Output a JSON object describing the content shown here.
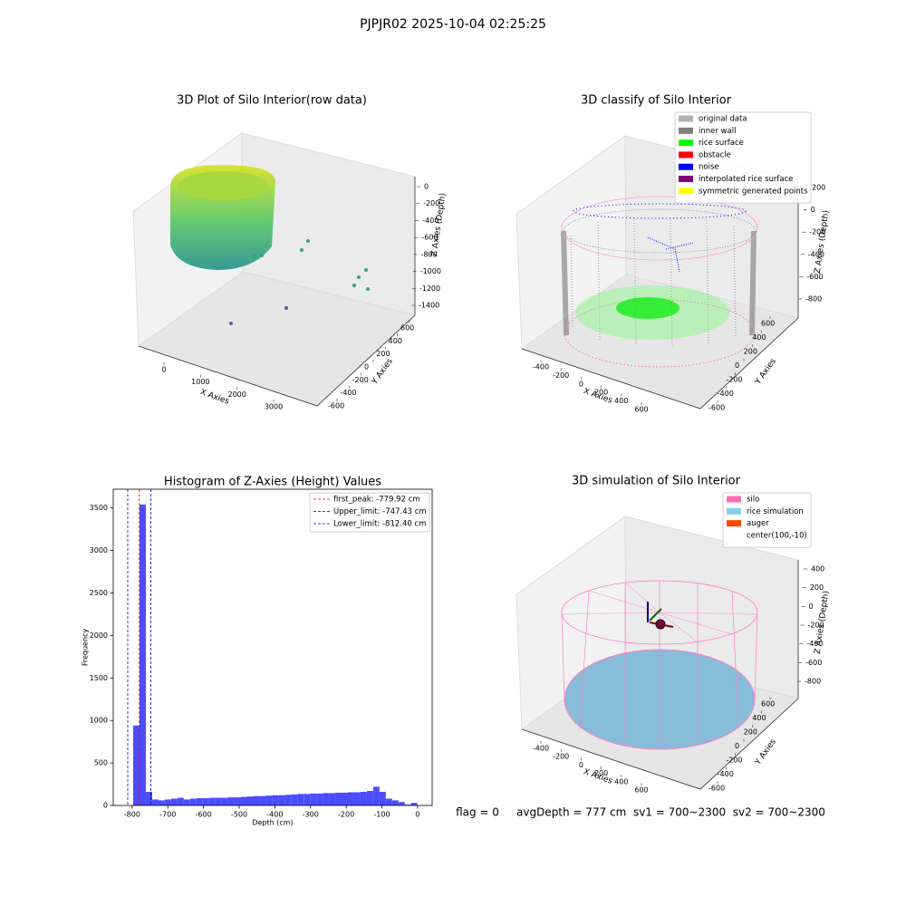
{
  "title": "PJPJR02 2025-10-04 02:25:25",
  "footer": "flag = 0     avgDepth = 777 cm  sv1 = 700~2300  sv2 = 700~2300",
  "chart_data": [
    {
      "type": "3d",
      "title": "3D Plot of Silo Interior(row data)",
      "xlabel": "X Axies",
      "ylabel": "Y Axies",
      "zlabel": "Z Axies (Depth)",
      "xticks": [
        0,
        1000,
        2000,
        3000
      ],
      "yticks": [
        -600,
        -400,
        -200,
        0,
        200,
        400,
        600
      ],
      "zticks": [
        -1400,
        -1200,
        -1000,
        -800,
        -600,
        -400,
        -200,
        0
      ]
    },
    {
      "type": "3d",
      "title": "3D classify of Silo Interior",
      "xlabel": "X Axies",
      "ylabel": "Y Axies",
      "zlabel": "Z Axies (Depth)",
      "xticks": [
        -400,
        -200,
        0,
        200,
        400,
        600
      ],
      "yticks": [
        -600,
        -400,
        -200,
        0,
        200,
        400,
        600
      ],
      "zticks": [
        -800,
        -600,
        -400,
        -200,
        0,
        200
      ],
      "legend": [
        {
          "name": "original data",
          "color": "#b3b3b3"
        },
        {
          "name": "inner wall",
          "color": "#808080"
        },
        {
          "name": "rice surface",
          "color": "#00ff00"
        },
        {
          "name": "obstacle",
          "color": "#ff0000"
        },
        {
          "name": "noise",
          "color": "#0000ff"
        },
        {
          "name": "interpolated rice surface",
          "color": "#800080"
        },
        {
          "name": "symmetric generated points",
          "color": "#ffff00"
        }
      ]
    },
    {
      "type": "histogram",
      "title": "Histogram of Z-Axies (Height) Values",
      "xlabel": "Depth (cm)",
      "ylabel": "Frequency",
      "color": "#4c4cff",
      "bins": [
        -797.0,
        -779.3,
        -761.6,
        -743.9,
        -726.2,
        -708.5,
        -690.8,
        -673.1,
        -655.4,
        -637.7,
        -620.0,
        -602.3,
        -584.6,
        -566.9,
        -549.2,
        -531.5,
        -513.8,
        -496.1,
        -478.4,
        -460.7,
        -443.0,
        -425.3,
        -407.6,
        -389.9,
        -372.2,
        -354.5,
        -336.8,
        -319.1,
        -301.4,
        -283.7,
        -266.0,
        -248.3,
        -230.6,
        -212.9,
        -195.2,
        -177.5,
        -159.8,
        -142.1,
        -124.4,
        -106.7,
        -89.0,
        -71.3,
        -53.6,
        -35.9,
        -18.2,
        -0.5
      ],
      "values": [
        940,
        3540,
        160,
        70,
        60,
        70,
        80,
        90,
        70,
        80,
        85,
        85,
        90,
        90,
        90,
        95,
        95,
        100,
        105,
        110,
        110,
        115,
        120,
        120,
        125,
        130,
        135,
        135,
        140,
        140,
        145,
        145,
        150,
        150,
        155,
        155,
        160,
        170,
        220,
        160,
        80,
        60,
        40,
        10,
        30
      ],
      "xlim": [
        -853,
        41
      ],
      "ylim": [
        0,
        3720
      ],
      "xticks": [
        -800,
        -700,
        -600,
        -500,
        -400,
        -300,
        -200,
        -100,
        0
      ],
      "yticks": [
        0,
        500,
        1000,
        1500,
        2000,
        2500,
        3000,
        3500
      ],
      "lines": [
        {
          "name": "first_peak: -779.92 cm",
          "value": -779.92,
          "color": "#ff0000"
        },
        {
          "name": "Upper_limit: -747.43 cm",
          "value": -747.43,
          "color": "#00008b"
        },
        {
          "name": "Lower_limit: -812.40 cm",
          "value": -812.4,
          "color": "#0000ff"
        }
      ]
    },
    {
      "type": "3d",
      "title": "3D simulation of Silo Interior",
      "xlabel": "X Axies",
      "ylabel": "Y Axies",
      "zlabel": "Z Axies (Depth)",
      "xticks": [
        -400,
        -200,
        0,
        200,
        400,
        600
      ],
      "yticks": [
        -600,
        -400,
        -200,
        0,
        200,
        400,
        600
      ],
      "zticks": [
        -800,
        -600,
        -400,
        -200,
        0,
        200,
        400
      ],
      "legend": [
        {
          "name": "silo",
          "color": "#ff69b4"
        },
        {
          "name": "rice simulation",
          "color": "#87ceeb"
        },
        {
          "name": "auger",
          "color": "#ff4500"
        },
        {
          "name": "center(100,-10)"
        }
      ]
    }
  ]
}
